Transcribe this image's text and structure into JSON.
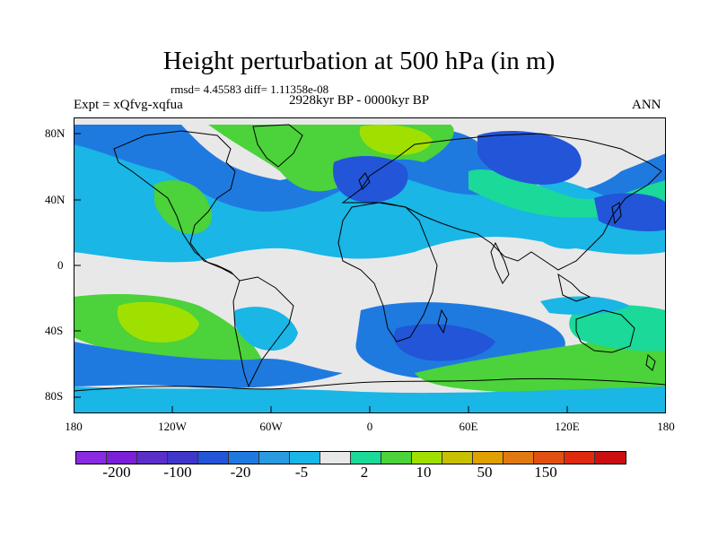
{
  "title": "Height perturbation at 500 hPa (in m)",
  "stats": "rmsd= 4.45583 diff= 1.11358e-08",
  "expt": "Expt = xQfvg-xqfua",
  "period": "2928kyr BP - 0000kyr BP",
  "season": "ANN",
  "lat_labels": [
    "80N",
    "40N",
    "0",
    "40S",
    "80S"
  ],
  "lon_labels": [
    "180",
    "120W",
    "60W",
    "0",
    "60E",
    "120E",
    "180"
  ],
  "colorbar": {
    "colors": [
      "#8a2be2",
      "#7b1fd8",
      "#5b2fc9",
      "#3f37c9",
      "#2255d8",
      "#1f7ae0",
      "#2a9be0",
      "#19b6e6",
      "#e8e8e8",
      "#1ad999",
      "#4cd23a",
      "#a0e000",
      "#c8c000",
      "#e0a000",
      "#e07a10",
      "#e05010",
      "#e02a10",
      "#cc1010"
    ],
    "labels": [
      "-200",
      "-100",
      "-20",
      "-5",
      "2",
      "10",
      "50",
      "150"
    ]
  },
  "map_colors": {
    "background": "#e8e8e8",
    "neg_light": "#19b6e6",
    "neg_mid": "#1f7ae0",
    "neg_dark": "#2255d8",
    "pos_light": "#1ad999",
    "pos_mid": "#4cd23a",
    "pos_strong": "#a0e000"
  }
}
